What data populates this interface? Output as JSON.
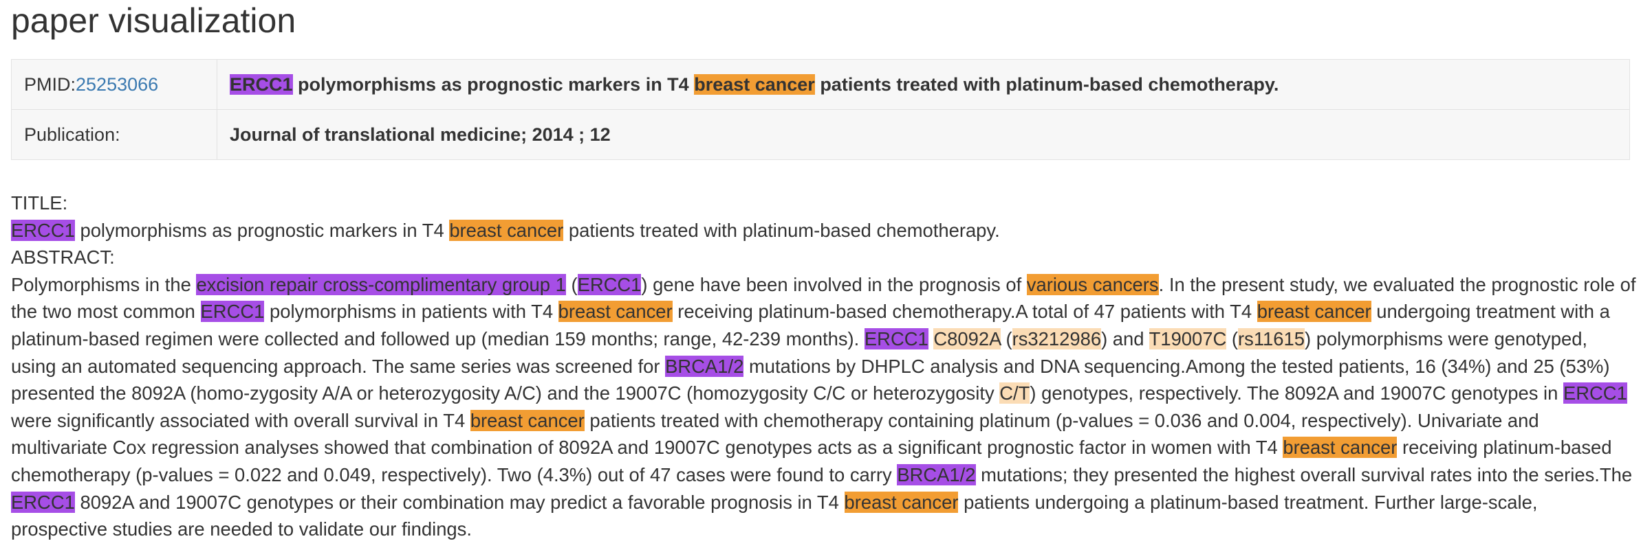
{
  "page": {
    "title": "paper visualization"
  },
  "meta": {
    "pmid_label": "PMID:",
    "pmid_value": "25253066",
    "title_parts": [
      {
        "text": "ERCC1",
        "type": "gene"
      },
      {
        "text": " polymorphisms as prognostic markers in T4 ",
        "type": "plain"
      },
      {
        "text": "breast cancer",
        "type": "disease"
      },
      {
        "text": " patients treated with platinum-based chemotherapy.",
        "type": "plain"
      }
    ],
    "publication_label": "Publication:",
    "publication_value": "Journal of translational medicine; 2014 ; 12"
  },
  "article": {
    "title_label": "TITLE:",
    "title_parts": [
      {
        "text": "ERCC1",
        "type": "gene"
      },
      {
        "text": " polymorphisms as prognostic markers in T4 ",
        "type": "plain"
      },
      {
        "text": "breast cancer",
        "type": "disease"
      },
      {
        "text": " patients treated with platinum-based chemotherapy.",
        "type": "plain"
      }
    ],
    "abstract_label": "ABSTRACT:",
    "abstract_parts": [
      {
        "text": "Polymorphisms in the ",
        "type": "plain"
      },
      {
        "text": "excision repair cross-complimentary group 1",
        "type": "gene"
      },
      {
        "text": " (",
        "type": "plain"
      },
      {
        "text": "ERCC1",
        "type": "gene"
      },
      {
        "text": ") gene have been involved in the prognosis of ",
        "type": "plain"
      },
      {
        "text": "various cancers",
        "type": "disease"
      },
      {
        "text": ". In the present study, we evaluated the prognostic role of the two most common ",
        "type": "plain"
      },
      {
        "text": "ERCC1",
        "type": "gene"
      },
      {
        "text": " polymorphisms in patients with T4 ",
        "type": "plain"
      },
      {
        "text": "breast cancer",
        "type": "disease"
      },
      {
        "text": " receiving platinum-based chemotherapy.A total of 47 patients with T4 ",
        "type": "plain"
      },
      {
        "text": "breast cancer",
        "type": "disease"
      },
      {
        "text": " undergoing treatment with a platinum-based regimen were collected and followed up (median 159 months; range, 42-239 months). ",
        "type": "plain"
      },
      {
        "text": "ERCC1",
        "type": "gene"
      },
      {
        "text": " ",
        "type": "plain"
      },
      {
        "text": "C8092A",
        "type": "mutation"
      },
      {
        "text": " (",
        "type": "plain"
      },
      {
        "text": "rs3212986",
        "type": "mutation"
      },
      {
        "text": ") and ",
        "type": "plain"
      },
      {
        "text": "T19007C",
        "type": "mutation"
      },
      {
        "text": " (",
        "type": "plain"
      },
      {
        "text": "rs11615",
        "type": "mutation"
      },
      {
        "text": ") polymorphisms were genotyped, using an automated sequencing approach. The same series was screened for ",
        "type": "plain"
      },
      {
        "text": "BRCA1/2",
        "type": "gene"
      },
      {
        "text": " mutations by DHPLC analysis and DNA sequencing.Among the tested patients, 16 (34%) and 25 (53%) presented the 8092A (homo-zygosity A/A or heterozygosity A/C) and the 19007C (homozygosity C/C or heterozygosity ",
        "type": "plain"
      },
      {
        "text": "C/T",
        "type": "mutation"
      },
      {
        "text": ") genotypes, respectively. The 8092A and 19007C genotypes in ",
        "type": "plain"
      },
      {
        "text": "ERCC1",
        "type": "gene"
      },
      {
        "text": " were significantly associated with overall survival in T4 ",
        "type": "plain"
      },
      {
        "text": "breast cancer",
        "type": "disease"
      },
      {
        "text": " patients treated with chemotherapy containing platinum (p-values = 0.036 and 0.004, respectively). Univariate and multivariate Cox regression analyses showed that combination of 8092A and 19007C genotypes acts as a significant prognostic factor in women with T4 ",
        "type": "plain"
      },
      {
        "text": "breast cancer",
        "type": "disease"
      },
      {
        "text": " receiving platinum-based chemotherapy (p-values = 0.022 and 0.049, respectively). Two (4.3%) out of 47 cases were found to carry ",
        "type": "plain"
      },
      {
        "text": "BRCA1/2",
        "type": "gene"
      },
      {
        "text": " mutations; they presented the highest overall survival rates into the series.The ",
        "type": "plain"
      },
      {
        "text": "ERCC1",
        "type": "gene"
      },
      {
        "text": " 8092A and 19007C genotypes or their combination may predict a favorable prognosis in T4 ",
        "type": "plain"
      },
      {
        "text": "breast cancer",
        "type": "disease"
      },
      {
        "text": " patients undergoing a platinum-based treatment. Further large-scale, prospective studies are needed to validate our findings.",
        "type": "plain"
      }
    ]
  },
  "colors": {
    "gene_highlight": "#a64ee6",
    "disease_highlight": "#f29d33",
    "mutation_highlight": "#fbdcb5",
    "link": "#3a79b0"
  }
}
